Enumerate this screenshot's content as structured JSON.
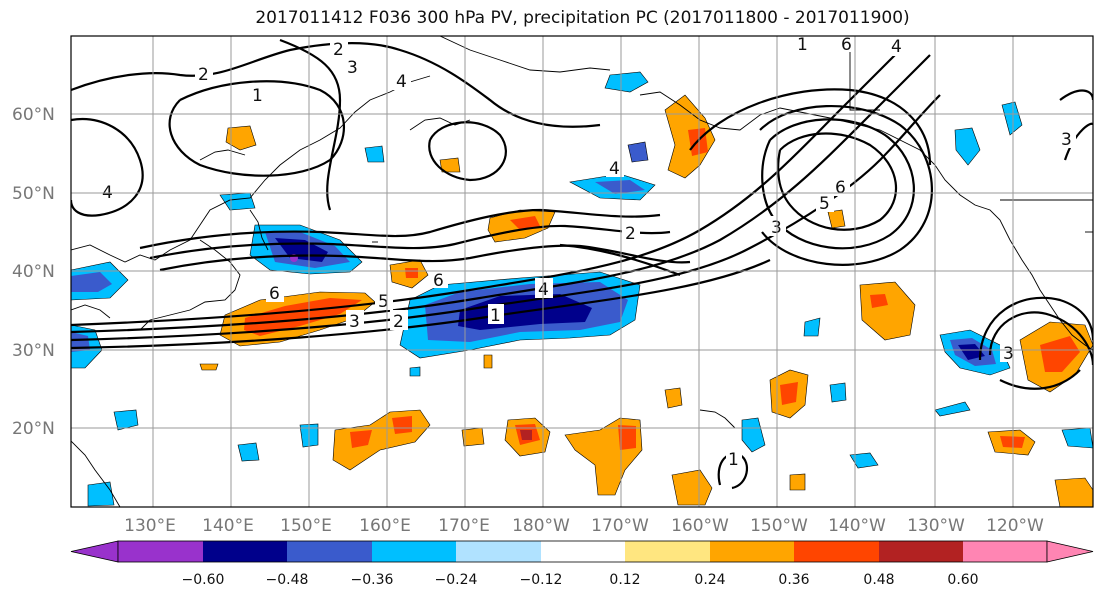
{
  "title": "2017011412 F036 300 hPa PV, precipitation PC (2017011800 - 2017011900)",
  "lat_labels": [
    "60°N",
    "50°N",
    "40°N",
    "30°N",
    "20°N"
  ],
  "lon_labels": [
    "130°E",
    "140°E",
    "150°E",
    "160°E",
    "170°E",
    "180°W",
    "170°W",
    "160°W",
    "150°W",
    "140°W",
    "130°W",
    "120°W"
  ],
  "colorbar": {
    "ticks": [
      "−0.60",
      "−0.48",
      "−0.36",
      "−0.24",
      "−0.12",
      "0.12",
      "0.24",
      "0.36",
      "0.48",
      "0.60"
    ],
    "colors": [
      "#9932cc",
      "#00008b",
      "#3a5bcc",
      "#00bfff",
      "#b0e2ff",
      "#ffffff",
      "#ffe680",
      "#ffa500",
      "#ff4500",
      "#b22222",
      "#ff85b3"
    ]
  },
  "contour_labels": [
    "1",
    "2",
    "3",
    "4",
    "5",
    "6"
  ],
  "colors": {
    "pv_contour": "#000000",
    "grid": "#9a9a9a",
    "coast": "#000000"
  }
}
